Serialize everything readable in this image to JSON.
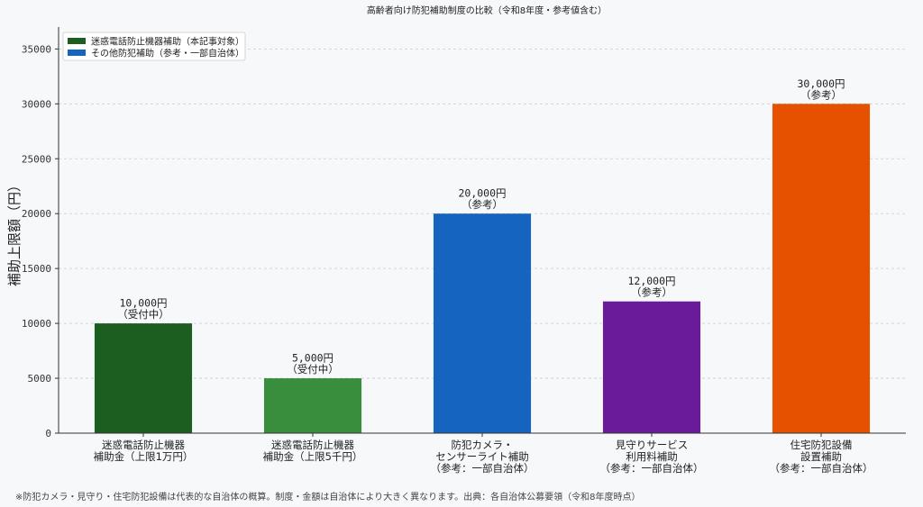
{
  "chart_data": {
    "type": "bar",
    "title": "高齢者向け防犯補助制度の比較（令和8年度・参考値含む）",
    "ylabel": "補助上限額（円）",
    "xlabel": "",
    "ylim": [
      0,
      37000
    ],
    "yticks": [
      0,
      5000,
      10000,
      15000,
      20000,
      25000,
      30000,
      35000
    ],
    "grid": "horizontal-dashed",
    "legend_position": "top-left",
    "legend": [
      {
        "label": "迷惑電話防止機器補助（本記事対象）",
        "color": "#1b5e20"
      },
      {
        "label": "その他防犯補助（参考・一部自治体）",
        "color": "#1565c0"
      }
    ],
    "bars": [
      {
        "category": [
          "迷惑電話防止機器",
          "補助金（上限1万円）"
        ],
        "value": 10000,
        "color": "#1b5e20",
        "label": [
          "10,000円",
          "（受付中）"
        ]
      },
      {
        "category": [
          "迷惑電話防止機器",
          "補助金（上限5千円）"
        ],
        "value": 5000,
        "color": "#388e3c",
        "label": [
          "5,000円",
          "（受付中）"
        ]
      },
      {
        "category": [
          "防犯カメラ・",
          "センサーライト補助",
          "（参考：一部自治体）"
        ],
        "value": 20000,
        "color": "#1565c0",
        "label": [
          "20,000円",
          "（参考）"
        ]
      },
      {
        "category": [
          "見守りサービス",
          "利用料補助",
          "（参考：一部自治体）"
        ],
        "value": 12000,
        "color": "#6a1b9a",
        "label": [
          "12,000円",
          "（参考）"
        ]
      },
      {
        "category": [
          "住宅防犯設備",
          "設置補助",
          "（参考：一部自治体）"
        ],
        "value": 30000,
        "color": "#e65100",
        "label": [
          "30,000円",
          "（参考）"
        ]
      }
    ],
    "footnote": "※防犯カメラ・見守り・住宅防犯設備は代表的な自治体の概算。制度・金額は自治体により大きく異なります。出典：各自治体公募要領（令和8年度時点）"
  }
}
